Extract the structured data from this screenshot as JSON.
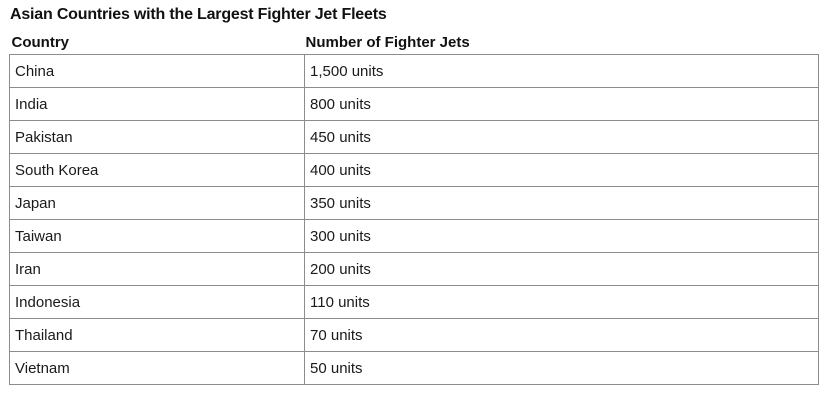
{
  "title": "Asian Countries with the Largest Fighter Jet Fleets",
  "table": {
    "headers": [
      "Country",
      "Number of Fighter Jets"
    ],
    "rows": [
      [
        "China",
        "1,500 units"
      ],
      [
        "India",
        "800 units"
      ],
      [
        "Pakistan",
        "450 units"
      ],
      [
        "South Korea",
        "400 units"
      ],
      [
        "Japan",
        "350 units"
      ],
      [
        "Taiwan",
        "300 units"
      ],
      [
        "Iran",
        "200 units"
      ],
      [
        "Indonesia",
        "110 units"
      ],
      [
        "Thailand",
        "70 units"
      ],
      [
        "Vietnam",
        "50 units"
      ]
    ]
  }
}
